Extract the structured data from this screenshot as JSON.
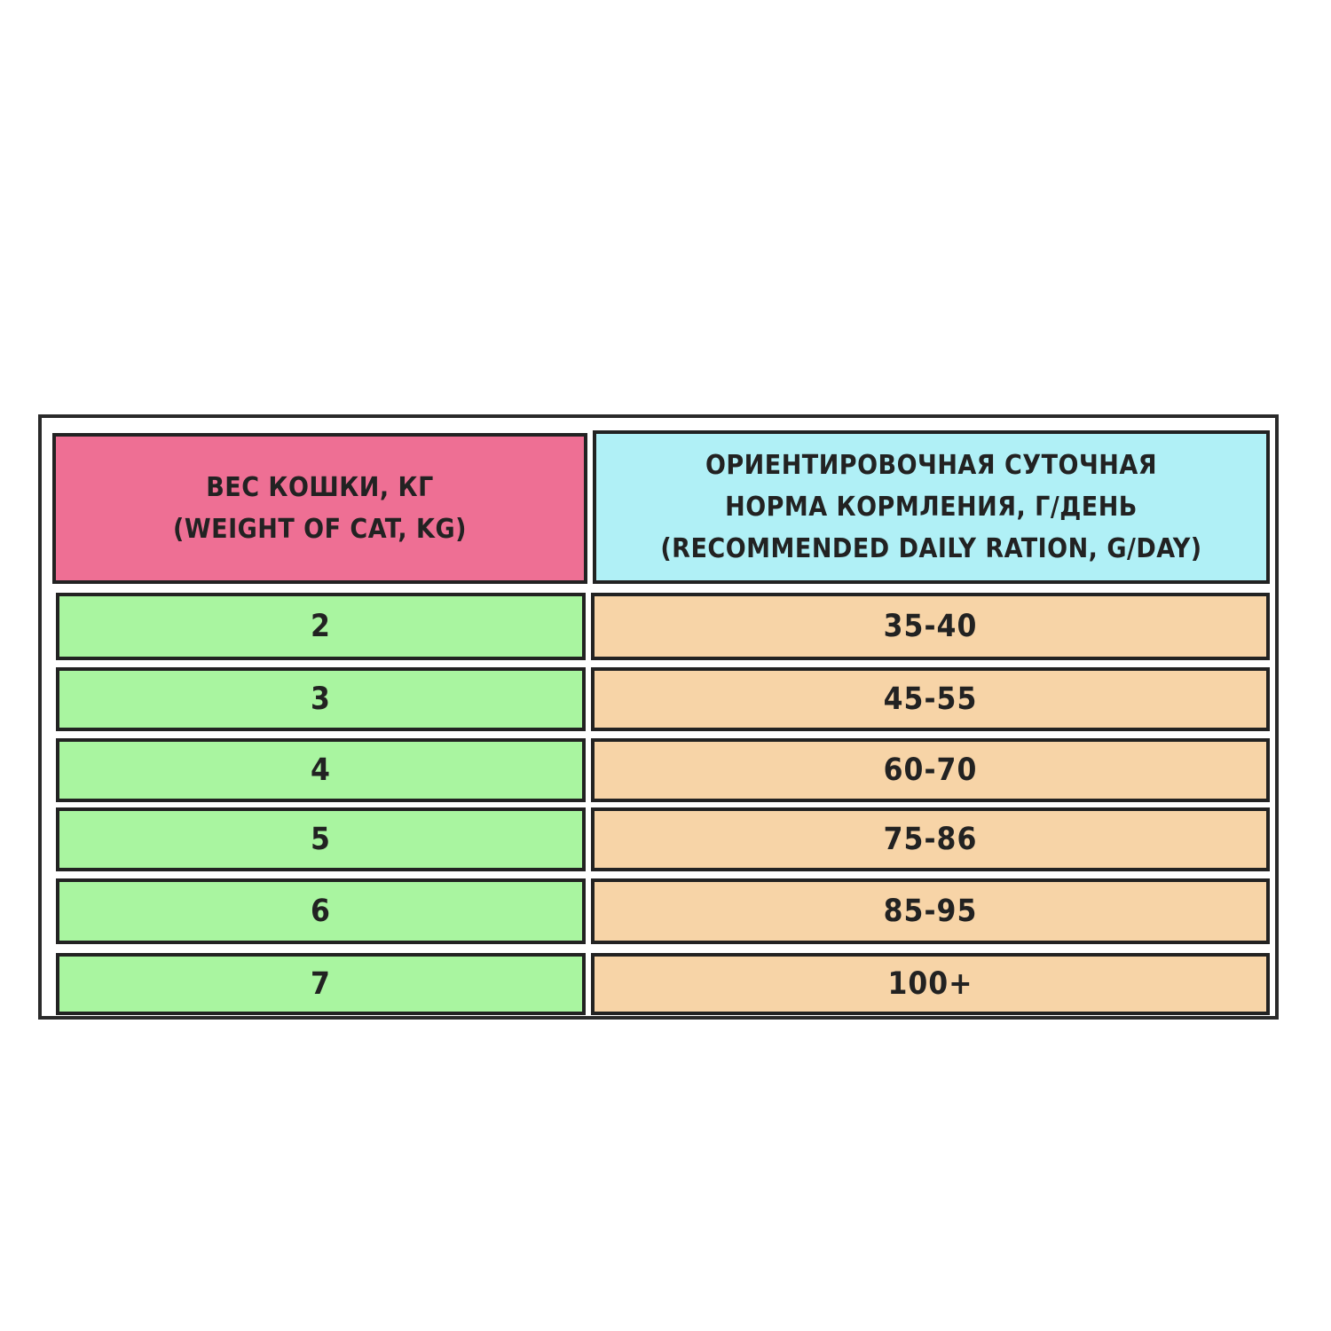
{
  "colors": {
    "header_left": "#ee6f94",
    "header_right": "#b0f0f6",
    "weight_cells": "#a9f5a0",
    "ration_cells": "#f7d4a7",
    "border": "#222222"
  },
  "table": {
    "headers": [
      {
        "line1": "ВЕС КОШКИ, КГ",
        "line2": "(WEIGHT OF CAT, KG)"
      },
      {
        "line1": "ОРИЕНТИРОВОЧНАЯ СУТОЧНАЯ",
        "line2": "НОРМА КОРМЛЕНИЯ, Г/ДЕНЬ",
        "line3": "(RECOMMENDED DAILY RATION, G/DAY)"
      }
    ],
    "rows": [
      {
        "weight": "2",
        "ration": "35-40"
      },
      {
        "weight": "3",
        "ration": "45-55"
      },
      {
        "weight": "4",
        "ration": "60-70"
      },
      {
        "weight": "5",
        "ration": "75-86"
      },
      {
        "weight": "6",
        "ration": "85-95"
      },
      {
        "weight": "7",
        "ration": "100+"
      }
    ]
  }
}
